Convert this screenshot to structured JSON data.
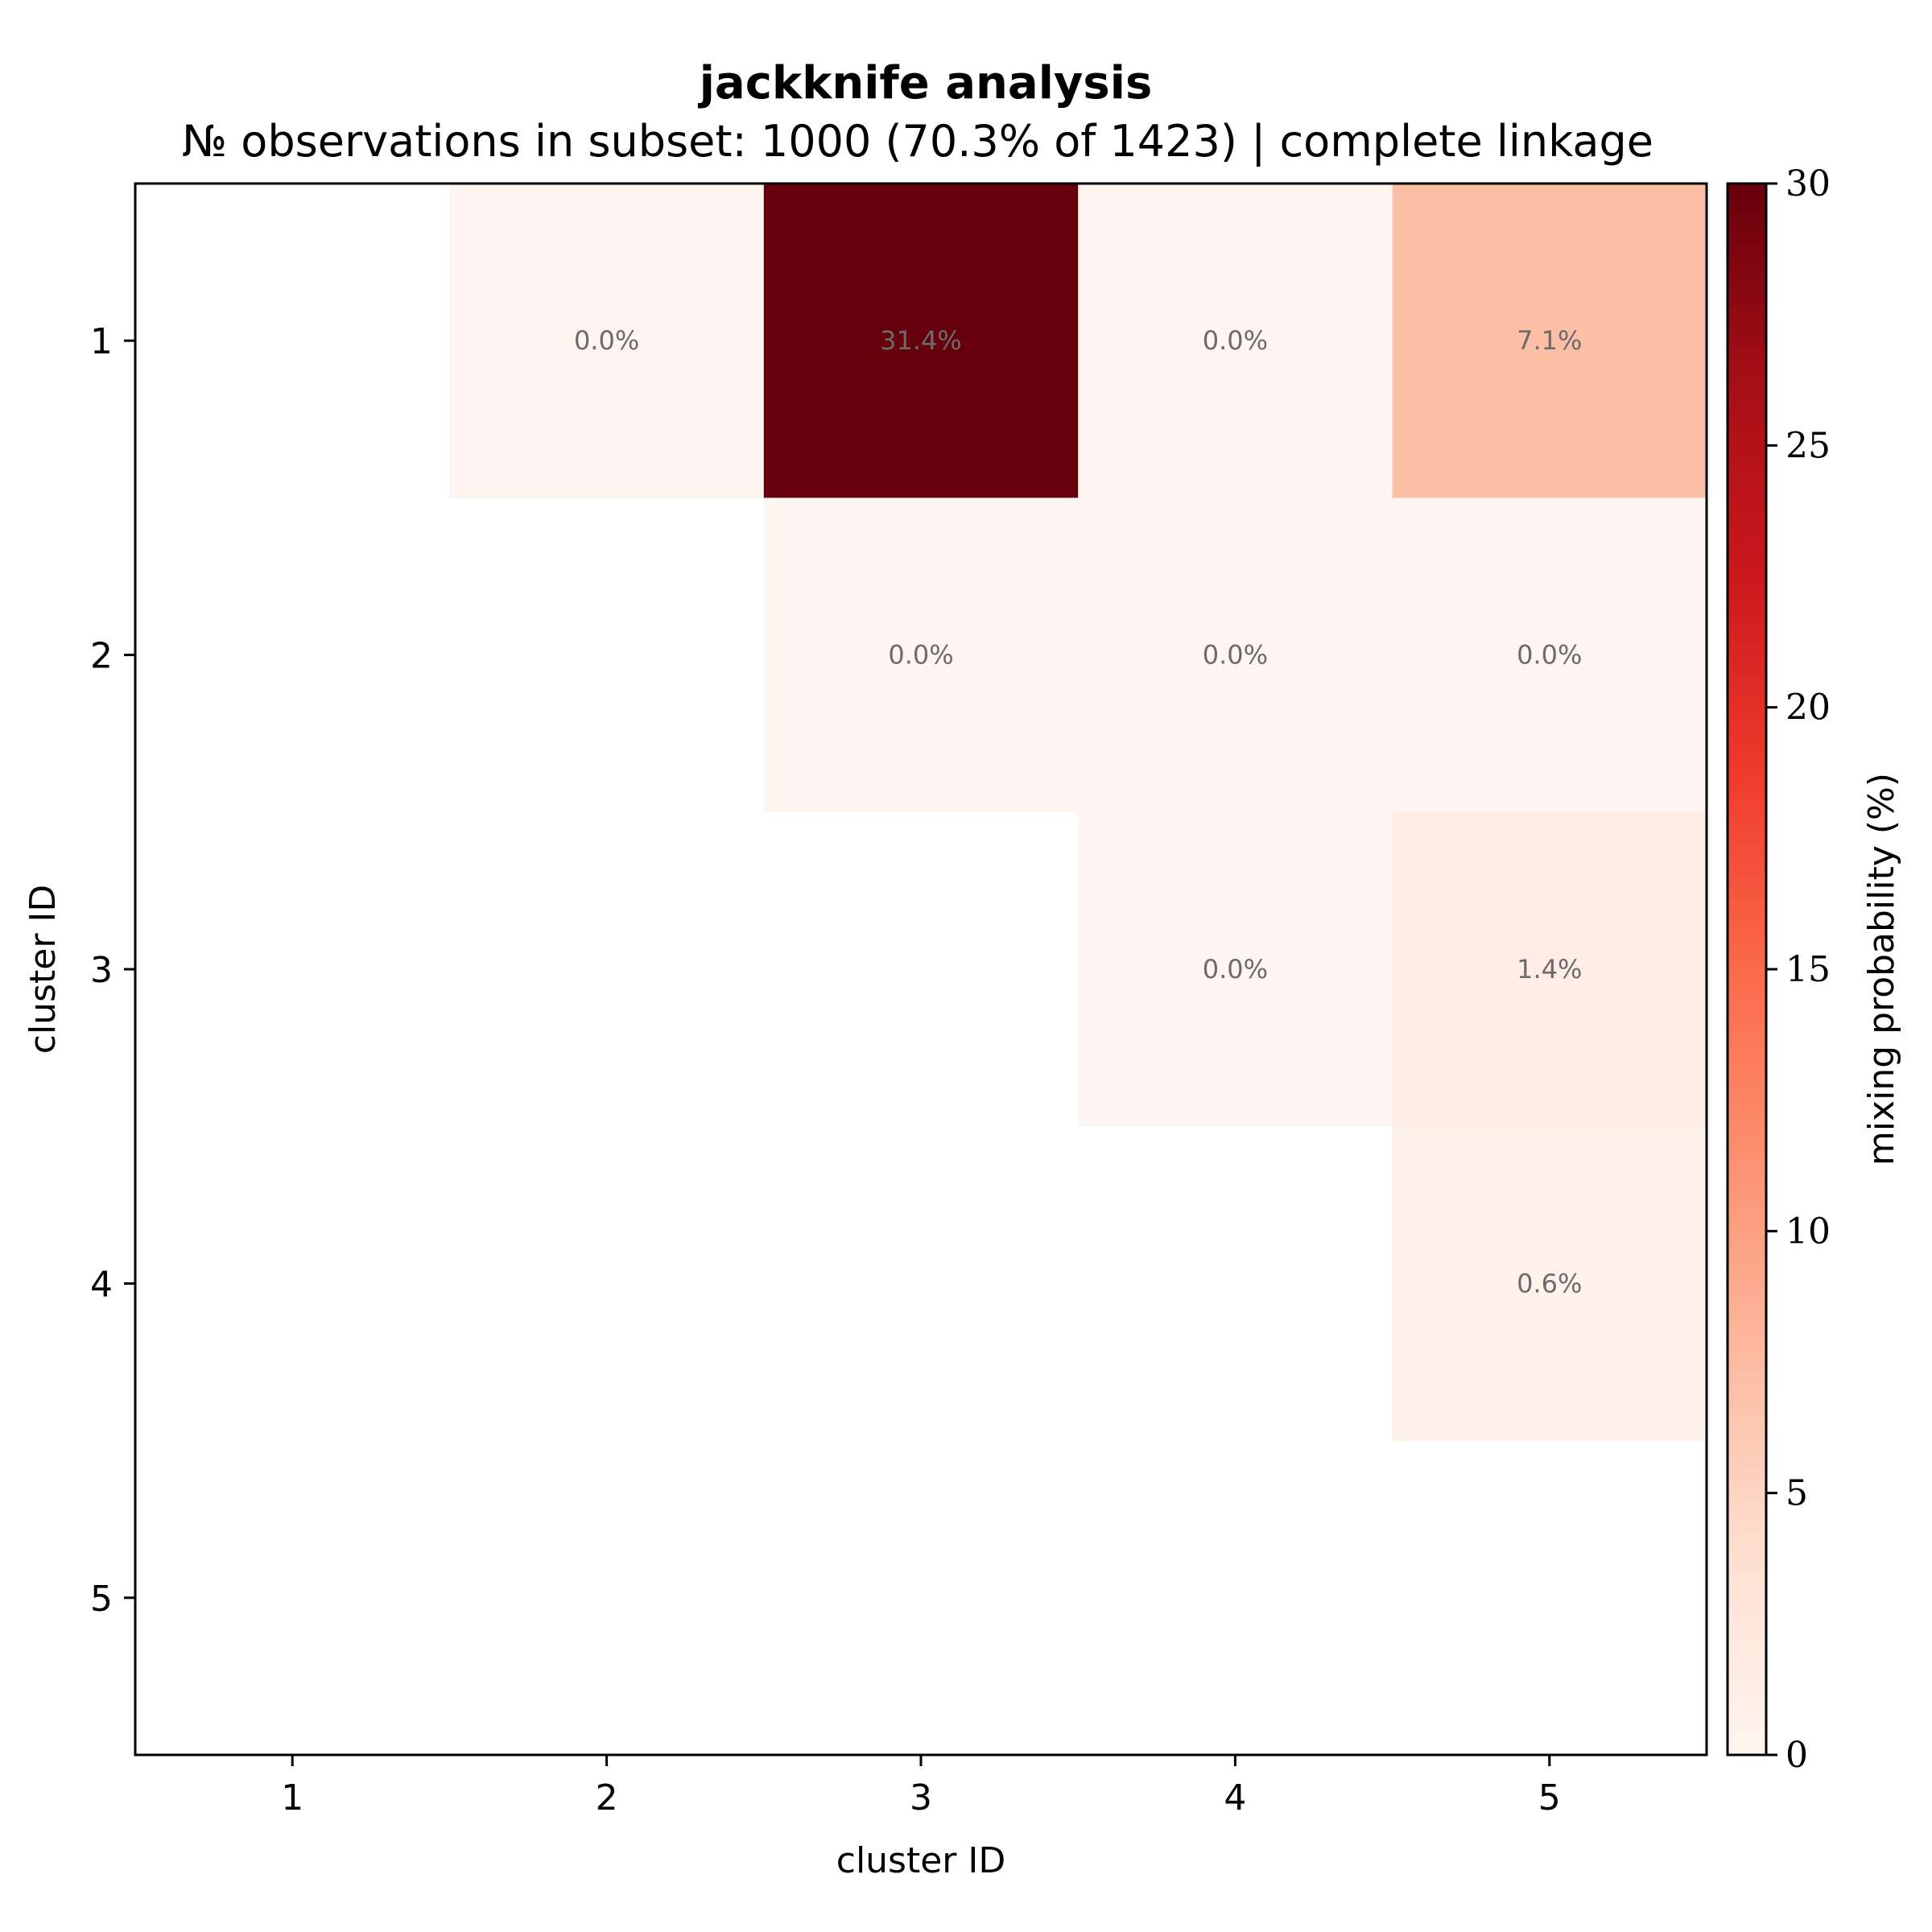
{
  "chart_data": {
    "type": "heatmap",
    "title": "jackknife analysis",
    "subtitle": "№ observations in subset: 1000 (70.3% of 1423) | complete linkage",
    "xlabel": "cluster ID",
    "ylabel": "cluster ID",
    "x_categories": [
      "1",
      "2",
      "3",
      "4",
      "5"
    ],
    "y_categories": [
      "1",
      "2",
      "3",
      "4",
      "5"
    ],
    "cells": [
      {
        "row": 1,
        "col": 2,
        "value": 0.0,
        "label": "0.0%"
      },
      {
        "row": 1,
        "col": 3,
        "value": 31.4,
        "label": "31.4%"
      },
      {
        "row": 1,
        "col": 4,
        "value": 0.0,
        "label": "0.0%"
      },
      {
        "row": 1,
        "col": 5,
        "value": 7.1,
        "label": "7.1%"
      },
      {
        "row": 2,
        "col": 3,
        "value": 0.0,
        "label": "0.0%"
      },
      {
        "row": 2,
        "col": 4,
        "value": 0.0,
        "label": "0.0%"
      },
      {
        "row": 2,
        "col": 5,
        "value": 0.0,
        "label": "0.0%"
      },
      {
        "row": 3,
        "col": 4,
        "value": 0.0,
        "label": "0.0%"
      },
      {
        "row": 3,
        "col": 5,
        "value": 1.4,
        "label": "1.4%"
      },
      {
        "row": 4,
        "col": 5,
        "value": 0.6,
        "label": "0.6%"
      }
    ],
    "colorbar": {
      "label": "mixing probability (%)",
      "range": [
        0,
        30
      ],
      "ticks": [
        0,
        5,
        10,
        15,
        20,
        25,
        30
      ],
      "colormap": "Reds"
    },
    "grid": false
  }
}
